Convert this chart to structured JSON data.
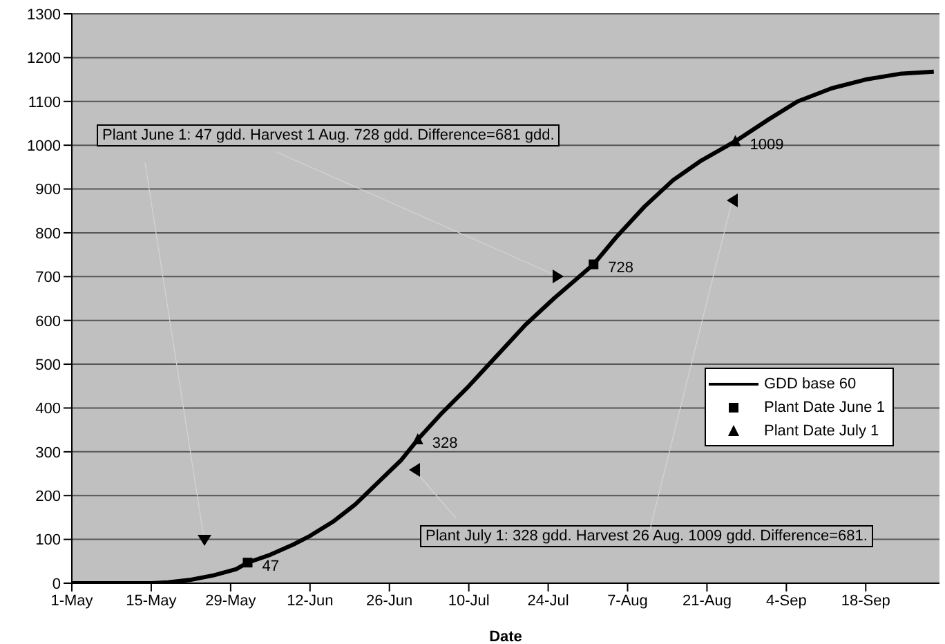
{
  "chart_data": {
    "type": "line",
    "xlabel": "Date",
    "legend": "right",
    "grid": "y",
    "xlim": [
      "--05-01",
      "--10-01"
    ],
    "xticks": [
      {
        "value": "--05-01",
        "label": "1-May"
      },
      {
        "value": "--05-15",
        "label": "15-May"
      },
      {
        "value": "--05-29",
        "label": "29-May"
      },
      {
        "value": "--06-12",
        "label": "12-Jun"
      },
      {
        "value": "--06-26",
        "label": "26-Jun"
      },
      {
        "value": "--07-10",
        "label": "10-Jul"
      },
      {
        "value": "--07-24",
        "label": "24-Jul"
      },
      {
        "value": "--08-07",
        "label": "7-Aug"
      },
      {
        "value": "--08-21",
        "label": "21-Aug"
      },
      {
        "value": "--09-04",
        "label": "4-Sep"
      },
      {
        "value": "--09-18",
        "label": "18-Sep"
      }
    ],
    "ylim": [
      0,
      1300
    ],
    "yticks": [
      0,
      100,
      200,
      300,
      400,
      500,
      600,
      700,
      800,
      900,
      1000,
      1100,
      1200,
      1300
    ],
    "series": [
      {
        "name": "GDD base 60",
        "color": "#000000",
        "marker": "none",
        "line_style": "solid",
        "x": [
          "--05-01",
          "--05-15",
          "--05-18",
          "--05-22",
          "--05-26",
          "--05-30",
          "--06-01",
          "--06-05",
          "--06-09",
          "--06-12",
          "--06-16",
          "--06-20",
          "--06-24",
          "--06-28",
          "--07-01",
          "--07-05",
          "--07-10",
          "--07-15",
          "--07-20",
          "--07-25",
          "--08-01",
          "--08-05",
          "--08-10",
          "--08-15",
          "--08-20",
          "--08-26",
          "--09-01",
          "--09-06",
          "--09-12",
          "--09-18",
          "--09-24",
          "--09-30"
        ],
        "values": [
          0,
          0,
          2,
          8,
          18,
          32,
          47,
          65,
          88,
          108,
          140,
          180,
          230,
          280,
          328,
          385,
          450,
          520,
          590,
          650,
          728,
          790,
          860,
          920,
          965,
          1009,
          1060,
          1100,
          1130,
          1150,
          1163,
          1168
        ]
      },
      {
        "name": "Plant Date June 1",
        "color": "#000000",
        "type": "scatter",
        "marker": "square",
        "x": [
          "--06-01",
          "--08-01"
        ],
        "values": [
          47,
          728
        ],
        "value_labels": [
          "47",
          "728"
        ]
      },
      {
        "name": "Plant Date July 1",
        "color": "#000000",
        "type": "scatter",
        "marker": "triangle",
        "x": [
          "--07-01",
          "--08-26"
        ],
        "values": [
          328,
          1009
        ],
        "value_labels": [
          "328",
          "1009"
        ]
      }
    ],
    "annotations": [
      "Plant June 1: 47 gdd. Harvest 1 Aug. 728 gdd. Difference=681 gdd.",
      "Plant July 1: 328 gdd. Harvest 26 Aug. 1009 gdd. Difference=681."
    ]
  }
}
